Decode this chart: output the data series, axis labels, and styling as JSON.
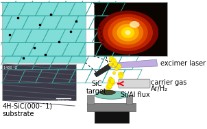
{
  "bg_color": "#ffffff",
  "labels": {
    "excimer_laser": "excimer laser",
    "carrier_gas": "carrier gas",
    "ar_h2": "Ar/H₂",
    "sic_target": "SiC\ntarget",
    "si_al_flux": "Si/Al flux",
    "substrate": "4H-SiC(000-¯1)\nsubstrate",
    "temp": "1400 °C"
  },
  "label_fontsize": 7.0
}
